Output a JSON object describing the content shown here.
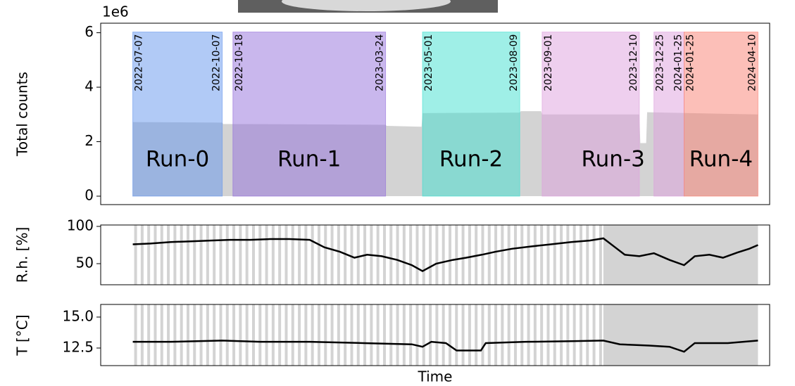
{
  "chart_data": [
    {
      "type": "area",
      "ylabel": "Total counts",
      "y_offset_label": "1e6",
      "xlim": [
        "2022-06-04",
        "2024-04-22"
      ],
      "ylim": [
        -0.31,
        6.35
      ],
      "yticks": [
        0,
        2,
        4,
        6
      ],
      "color": "#d3d3d3",
      "x": [
        "2022-07-07",
        "2022-10-07",
        "2022-10-08",
        "2023-03-24",
        "2023-03-25",
        "2023-04-30",
        "2023-05-01",
        "2023-08-09",
        "2023-08-10",
        "2023-08-31",
        "2023-09-01",
        "2023-12-10",
        "2023-12-11",
        "2023-12-17",
        "2023-12-18",
        "2024-04-10"
      ],
      "values": [
        2.72,
        2.7,
        2.65,
        2.62,
        2.58,
        2.55,
        3.05,
        3.07,
        3.12,
        3.12,
        3.0,
        3.0,
        1.95,
        1.95,
        3.08,
        3.0
      ],
      "runs": [
        {
          "name": "Run-0",
          "color": "#6495ed",
          "periods": [
            {
              "start": "2022-07-07",
              "end": "2022-10-07"
            }
          ]
        },
        {
          "name": "Run-1",
          "color": "#9370db",
          "periods": [
            {
              "start": "2022-10-18",
              "end": "2023-03-24"
            }
          ]
        },
        {
          "name": "Run-2",
          "color": "#40e0d0",
          "periods": [
            {
              "start": "2023-05-01",
              "end": "2023-08-09"
            }
          ]
        },
        {
          "name": "Run-3",
          "color": "#dda0dd",
          "periods": [
            {
              "start": "2023-09-01",
              "end": "2023-12-10"
            },
            {
              "start": "2023-12-25",
              "end": "2024-01-25"
            }
          ]
        },
        {
          "name": "Run-4",
          "color": "#fa8072",
          "periods": [
            {
              "start": "2024-01-25",
              "end": "2024-04-10"
            }
          ]
        }
      ]
    },
    {
      "type": "line",
      "ylabel": "R.h. [%]",
      "xlim": [
        "2022-06-04",
        "2024-04-22"
      ],
      "ylim": [
        21.7,
        101.9
      ],
      "yticks": [
        50,
        100
      ],
      "color": "#000000",
      "shaded": {
        "start": "2023-11-03",
        "end": "2024-04-10"
      },
      "x": [
        "2022-07-07",
        "2022-07-25",
        "2022-08-15",
        "2022-09-05",
        "2022-09-25",
        "2022-10-15",
        "2022-11-05",
        "2022-11-25",
        "2022-12-15",
        "2023-01-05",
        "2023-01-20",
        "2023-02-05",
        "2023-02-20",
        "2023-03-05",
        "2023-03-20",
        "2023-04-05",
        "2023-04-20",
        "2023-05-01",
        "2023-05-15",
        "2023-06-01",
        "2023-06-15",
        "2023-07-01",
        "2023-07-15",
        "2023-08-01",
        "2023-08-20",
        "2023-09-10",
        "2023-10-01",
        "2023-10-20",
        "2023-11-03",
        "2023-11-15",
        "2023-11-25",
        "2023-12-10",
        "2023-12-25",
        "2024-01-10",
        "2024-01-25",
        "2024-02-05",
        "2024-02-20",
        "2024-03-05",
        "2024-03-20",
        "2024-04-01",
        "2024-04-10"
      ],
      "values": [
        76,
        77,
        79,
        80,
        81,
        82,
        82,
        83,
        83,
        82,
        72,
        66,
        58,
        62,
        60,
        55,
        48,
        40,
        50,
        55,
        58,
        62,
        66,
        70,
        73,
        76,
        79,
        81,
        84,
        72,
        62,
        60,
        64,
        55,
        48,
        60,
        62,
        58,
        65,
        70,
        75
      ]
    },
    {
      "type": "line",
      "ylabel": "T [°C]",
      "xlabel": "Time",
      "xlim": [
        "2022-06-04",
        "2024-04-22"
      ],
      "ylim": [
        11.08,
        16.02
      ],
      "yticks": [
        12.5,
        {
          "value": 15,
          "label": "15.0"
        }
      ],
      "color": "#000000",
      "shaded": {
        "start": "2023-11-03",
        "end": "2024-04-10"
      },
      "x": [
        "2022-07-07",
        "2022-08-15",
        "2022-10-07",
        "2022-11-15",
        "2023-01-05",
        "2023-03-01",
        "2023-04-20",
        "2023-05-01",
        "2023-05-10",
        "2023-05-25",
        "2023-06-05",
        "2023-06-30",
        "2023-07-05",
        "2023-08-15",
        "2023-10-01",
        "2023-11-03",
        "2023-11-20",
        "2023-12-20",
        "2024-01-10",
        "2024-01-25",
        "2024-02-05",
        "2024-03-10",
        "2024-04-10"
      ],
      "values": [
        13.0,
        13.0,
        13.1,
        13.0,
        13.0,
        12.9,
        12.8,
        12.6,
        13.0,
        12.9,
        12.3,
        12.3,
        12.9,
        13.0,
        13.05,
        13.1,
        12.8,
        12.7,
        12.6,
        12.2,
        12.9,
        12.9,
        13.1
      ]
    }
  ]
}
